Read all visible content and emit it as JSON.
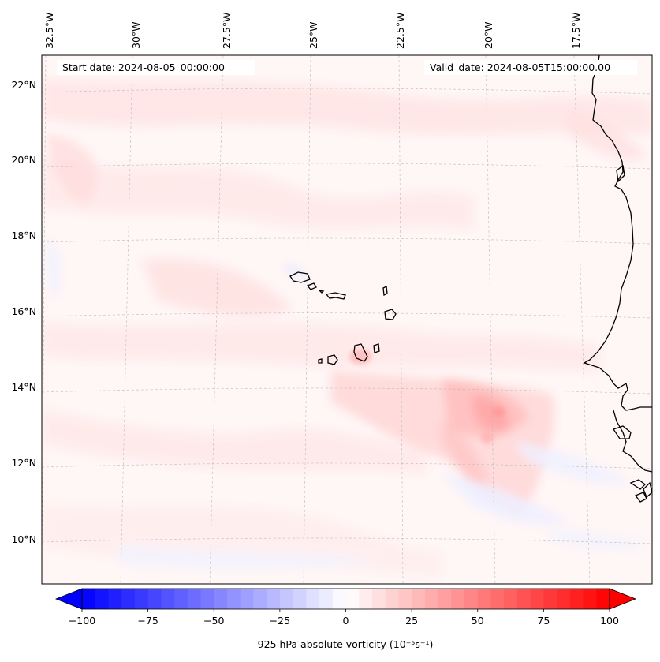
{
  "map": {
    "start_date_text": "Start date: 2024-08-05_00:00:00",
    "valid_date_text": "Valid_date: 2024-08-05T15:00:00.00",
    "lon_labels": [
      "32.5°W",
      "30°W",
      "27.5°W",
      "25°W",
      "22.5°W",
      "20°W",
      "17.5°W"
    ],
    "lat_labels": [
      "22°N",
      "20°N",
      "18°N",
      "16°N",
      "14°N",
      "12°N",
      "10°N"
    ],
    "region": "Cabo Verde islands and West African coast (Senegal)",
    "field": "925 hPa absolute vorticity"
  },
  "colorbar": {
    "label": "925 hPa absolute vorticity (10$^{-5}$s$^{-1}$)",
    "label_display": "925 hPa absolute vorticity (10⁻⁵s⁻¹)",
    "tick_labels": [
      "−100",
      "−75",
      "−50",
      "−25",
      "0",
      "25",
      "50",
      "75",
      "100"
    ],
    "vmin": -100,
    "vmax": 100,
    "n_levels": 40,
    "colormap": "bwr",
    "extend": "both"
  },
  "colors": {
    "negative_end": "#0000ff",
    "zero": "#ffffff",
    "positive_end": "#ff0000",
    "gridline": "#bbbbbb",
    "coast": "#000000"
  }
}
